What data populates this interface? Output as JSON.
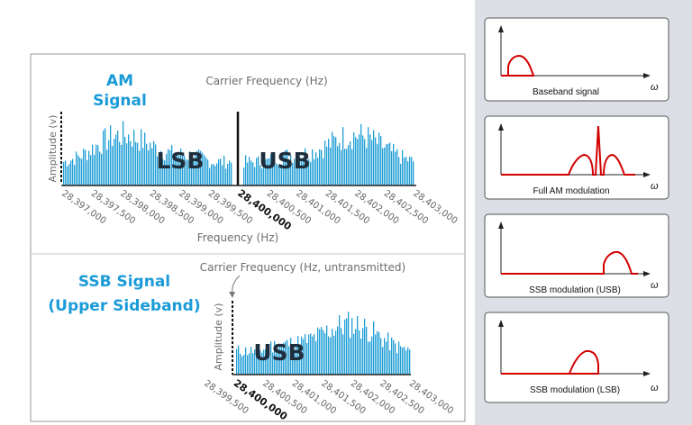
{
  "top_panel": {
    "title_line1": "AM",
    "title_line2": "Signal",
    "carrier_label": "Carrier Frequency (Hz)",
    "y_label": "Amplitude (v)",
    "x_label": "Frequency (Hz)",
    "lsb_label": "LSB",
    "usb_label": "USB",
    "ticks": [
      "28,397,000",
      "28,397,500",
      "28,398,000",
      "28,398,500",
      "28,399,000",
      "28,399,500",
      "28,400,000",
      "28,400,500",
      "28,401,000",
      "28,401,500",
      "28,402,000",
      "28,402,500",
      "28,403,000"
    ],
    "bold_tick": "28,400,000"
  },
  "bottom_panel": {
    "title_line1": "SSB Signal",
    "title_line2": "(Upper Sideband)",
    "carrier_label": "Carrier Frequency (Hz, untransmitted)",
    "y_label": "Amplitude (v)",
    "usb_label": "USB",
    "ticks": [
      "28,399,500",
      "28,400,000",
      "28,400,500",
      "28,401,000",
      "28,401,500",
      "28,402,000",
      "28,402,500",
      "28,403,000"
    ],
    "bold_tick": "28,400,000"
  },
  "right_panels": [
    {
      "caption": "Baseband signal",
      "axis_symbol": "ω"
    },
    {
      "caption": "Full AM modulation",
      "axis_symbol": "ω"
    },
    {
      "caption": "SSB modulation (USB)",
      "axis_symbol": "ω"
    },
    {
      "caption": "SSB modulation (LSB)",
      "axis_symbol": "ω"
    }
  ],
  "colors": {
    "spectrum_bar": "#1f9ed6",
    "title_blue": "#1a9bd7",
    "signal_red": "#d20000",
    "sidebar_bg": "#dcdfe5"
  }
}
